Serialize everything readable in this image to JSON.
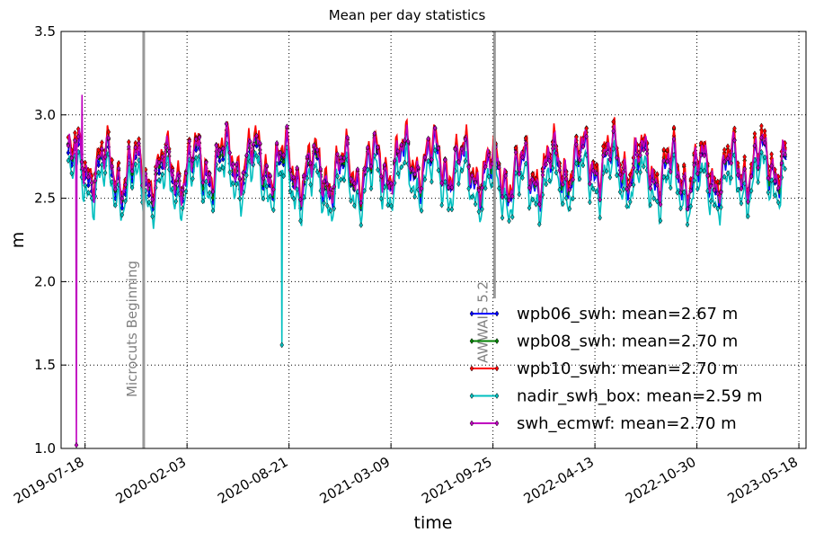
{
  "chart_data": {
    "type": "line",
    "title": "Mean per day statistics",
    "xlabel": "time",
    "ylabel": "m",
    "ylim": [
      1.0,
      3.5
    ],
    "xlim": [
      "2019-06-01",
      "2023-06-01"
    ],
    "grid": true,
    "legend_position": "lower-right",
    "x_ticks": [
      "2019-07-18",
      "2020-02-03",
      "2020-08-21",
      "2021-03-09",
      "2021-09-25",
      "2022-04-13",
      "2022-10-30",
      "2023-05-18"
    ],
    "y_ticks": [
      "1.0",
      "1.5",
      "2.0",
      "2.5",
      "3.0",
      "3.5"
    ],
    "x_range": [
      "2019-06-15",
      "2023-04-25"
    ],
    "series": [
      {
        "name": "wpb06_swh: mean=2.67 m",
        "color": "#0000ff",
        "mean": 2.67,
        "offset": -0.02
      },
      {
        "name": "wpb08_swh: mean=2.70 m",
        "color": "#008000",
        "mean": 2.7,
        "offset": 0.01
      },
      {
        "name": "wpb10_swh: mean=2.70 m",
        "color": "#ff0000",
        "mean": 2.7,
        "offset": 0.03
      },
      {
        "name": "nadir_swh_box: mean=2.59 m",
        "color": "#00bfbf",
        "mean": 2.59,
        "offset": -0.11
      },
      {
        "name": "swh_ecmwf: mean=2.70 m",
        "color": "#bf00bf",
        "mean": 2.7,
        "offset": 0.0
      }
    ],
    "spikes": [
      {
        "series": "swh_ecmwf: mean=2.70 m",
        "x": "2019-07-01",
        "y": 1.02
      },
      {
        "series": "nadir_swh_box: mean=2.59 m",
        "x": "2020-08-07",
        "y": 1.62
      },
      {
        "series": "swh_ecmwf: mean=2.70 m",
        "x": "2019-07-12",
        "y": 3.12
      }
    ],
    "vertical_lines": [
      {
        "x": "2019-11-10",
        "label": "Microcuts Beginning"
      },
      {
        "x": "2021-09-28",
        "label": "AWWAIS 5.2"
      }
    ]
  }
}
